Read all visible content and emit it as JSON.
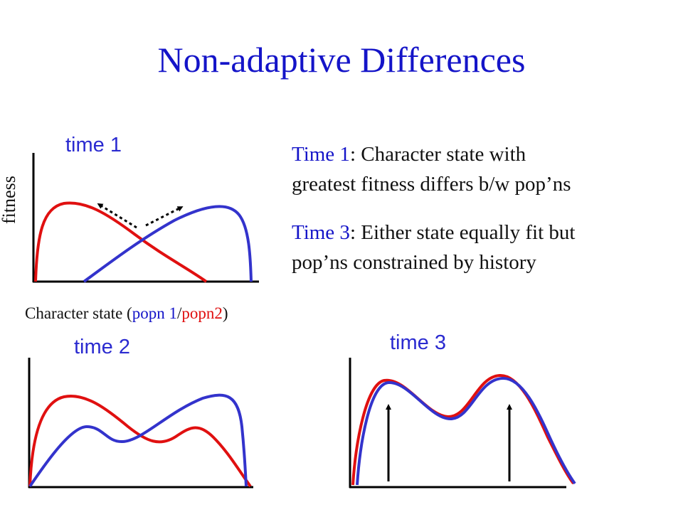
{
  "title": "Non-adaptive Differences",
  "plots": {
    "time1": "time 1",
    "time2": "time 2",
    "time3": "time 3"
  },
  "y_axis_label": "fitness",
  "x_axis_label": {
    "prefix": "Character state (",
    "popn1": "popn 1",
    "sep": "/",
    "popn2": "popn2",
    "suffix": ")"
  },
  "notes": [
    {
      "head": "Time 1",
      "line1": ": Character state with",
      "line2": "greatest fitness differs b/w pop’ns"
    },
    {
      "head": "Time 3",
      "line1": ": Either state equally fit but",
      "line2": "pop’ns constrained by history"
    }
  ],
  "colors": {
    "popn1": "#3333cc",
    "popn2": "#e01010",
    "text_accent": "#1414c8"
  }
}
